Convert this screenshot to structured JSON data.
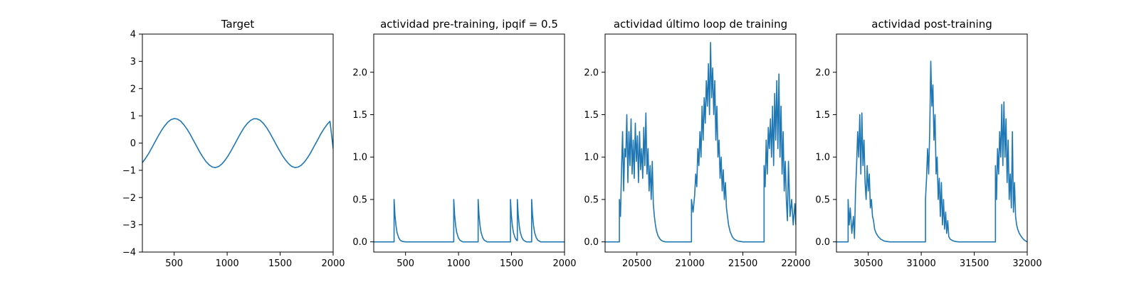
{
  "colors": {
    "line": "#1f77b4",
    "axis": "#000000",
    "background": "#ffffff"
  },
  "chart_data": [
    {
      "type": "line",
      "title": "Target",
      "xlabel": "",
      "ylabel": "",
      "xlim": [
        200,
        2000
      ],
      "ylim": [
        -4,
        4
      ],
      "xticks": [
        500,
        1000,
        1500,
        2000
      ],
      "yticks": [
        -4,
        -3,
        -2,
        -1,
        0,
        1,
        2,
        3,
        4
      ],
      "ytick_decimals": 0,
      "grid": false,
      "series": [
        {
          "x": [
            200,
            230,
            260,
            290,
            320,
            350,
            380,
            410,
            440,
            470,
            500,
            530,
            560,
            590,
            620,
            650,
            680,
            710,
            740,
            770,
            800,
            830,
            860,
            890,
            920,
            950,
            980,
            1010,
            1040,
            1070,
            1100,
            1130,
            1160,
            1190,
            1220,
            1250,
            1280,
            1310,
            1340,
            1370,
            1400,
            1430,
            1460,
            1490,
            1520,
            1550,
            1580,
            1610,
            1640,
            1670,
            1700,
            1730,
            1760,
            1790,
            1820,
            1850,
            1880,
            1910,
            1940,
            1970,
            2000
          ],
          "y": [
            -0.72,
            -0.56,
            -0.38,
            -0.17,
            0.05,
            0.26,
            0.46,
            0.63,
            0.77,
            0.86,
            0.9,
            0.88,
            0.81,
            0.68,
            0.52,
            0.33,
            0.11,
            -0.1,
            -0.32,
            -0.51,
            -0.68,
            -0.8,
            -0.88,
            -0.9,
            -0.86,
            -0.77,
            -0.63,
            -0.46,
            -0.26,
            -0.05,
            0.17,
            0.38,
            0.57,
            0.72,
            0.83,
            0.89,
            0.89,
            0.84,
            0.73,
            0.58,
            0.39,
            0.18,
            -0.04,
            -0.25,
            -0.45,
            -0.62,
            -0.76,
            -0.86,
            -0.9,
            -0.88,
            -0.81,
            -0.69,
            -0.53,
            -0.34,
            -0.12,
            0.09,
            0.31,
            0.5,
            0.67,
            0.8,
            -0.2
          ]
        }
      ]
    },
    {
      "type": "line",
      "title": "actividad pre-training, ipqif = 0.5",
      "xlabel": "",
      "ylabel": "",
      "xlim": [
        200,
        2000
      ],
      "ylim": [
        -0.12,
        2.45
      ],
      "xticks": [
        500,
        1000,
        1500,
        2000
      ],
      "yticks": [
        0.0,
        0.5,
        1.0,
        1.5,
        2.0
      ],
      "ytick_decimals": 1,
      "grid": false,
      "series": [
        {
          "x": [
            200,
            392,
            392,
            400,
            410,
            420,
            435,
            450,
            470,
            500,
            955,
            955,
            963,
            973,
            983,
            998,
            1013,
            1040,
            1185,
            1185,
            1193,
            1203,
            1213,
            1228,
            1243,
            1270,
            1490,
            1490,
            1498,
            1508,
            1518,
            1533,
            1548,
            1555,
            1555,
            1563,
            1573,
            1583,
            1598,
            1613,
            1640,
            1690,
            1690,
            1698,
            1708,
            1718,
            1733,
            1748,
            1775,
            2000
          ],
          "y": [
            0,
            0,
            0.5,
            0.32,
            0.19,
            0.11,
            0.05,
            0.02,
            0.005,
            0,
            0,
            0.5,
            0.32,
            0.19,
            0.11,
            0.05,
            0.02,
            0,
            0,
            0.5,
            0.32,
            0.19,
            0.11,
            0.05,
            0.02,
            0,
            0,
            0.5,
            0.32,
            0.19,
            0.11,
            0.05,
            0.02,
            0.015,
            0.5,
            0.32,
            0.19,
            0.11,
            0.05,
            0.02,
            0,
            0,
            0.5,
            0.32,
            0.19,
            0.11,
            0.05,
            0.02,
            0,
            0
          ]
        }
      ]
    },
    {
      "type": "line",
      "title": "actividad último loop de training",
      "xlabel": "",
      "ylabel": "",
      "xlim": [
        20200,
        22000
      ],
      "ylim": [
        -0.12,
        2.45
      ],
      "xticks": [
        20500,
        21000,
        21500,
        22000
      ],
      "yticks": [
        0.0,
        0.5,
        1.0,
        1.5,
        2.0
      ],
      "ytick_decimals": 1,
      "grid": false,
      "series": [
        {
          "x": [
            20200,
            20335,
            20335,
            20345,
            20355,
            20365,
            20375,
            20385,
            20395,
            20405,
            20415,
            20425,
            20435,
            20445,
            20455,
            20465,
            20475,
            20485,
            20495,
            20505,
            20515,
            20525,
            20535,
            20545,
            20555,
            20565,
            20575,
            20585,
            20595,
            20605,
            20615,
            20625,
            20635,
            20645,
            20655,
            20665,
            20675,
            20685,
            20700,
            20720,
            20740,
            20770,
            20800,
            21015,
            21015,
            21030,
            21045,
            21055,
            21065,
            21075,
            21085,
            21095,
            21105,
            21115,
            21125,
            21135,
            21145,
            21155,
            21165,
            21175,
            21185,
            21195,
            21205,
            21215,
            21225,
            21235,
            21245,
            21255,
            21265,
            21275,
            21285,
            21295,
            21305,
            21315,
            21325,
            21335,
            21345,
            21355,
            21365,
            21380,
            21400,
            21420,
            21450,
            21500,
            21700,
            21700,
            21710,
            21720,
            21730,
            21740,
            21750,
            21760,
            21770,
            21780,
            21790,
            21800,
            21810,
            21820,
            21830,
            21840,
            21850,
            21860,
            21870,
            21880,
            21890,
            21900,
            21910,
            21920,
            21930,
            21945,
            21960,
            21975,
            21990,
            22000
          ],
          "y": [
            0,
            0,
            0.5,
            0.3,
            0.85,
            1.3,
            0.6,
            1.1,
            1.0,
            1.5,
            0.7,
            1.3,
            0.9,
            1.45,
            0.8,
            1.2,
            0.75,
            1.4,
            0.95,
            1.25,
            0.7,
            1.3,
            0.85,
            1.1,
            0.75,
            1.35,
            0.9,
            1.52,
            0.8,
            1.1,
            0.6,
            0.9,
            0.5,
            0.95,
            0.45,
            0.3,
            0.2,
            0.13,
            0.07,
            0.03,
            0.01,
            0,
            0,
            0,
            0.5,
            0.35,
            0.55,
            0.8,
            0.65,
            1.1,
            0.9,
            1.3,
            1.0,
            1.6,
            1.2,
            1.7,
            1.4,
            1.9,
            1.6,
            2.1,
            1.5,
            2.35,
            1.7,
            2.05,
            1.5,
            1.9,
            1.2,
            1.6,
            1.0,
            1.2,
            0.75,
            1.0,
            0.6,
            0.85,
            0.5,
            0.7,
            0.4,
            0.3,
            0.2,
            0.12,
            0.06,
            0.03,
            0.01,
            0,
            0,
            0.9,
            0.65,
            1.2,
            0.8,
            1.35,
            1.1,
            1.45,
            1.0,
            1.6,
            0.9,
            1.75,
            1.2,
            1.9,
            1.1,
            1.98,
            1.0,
            1.6,
            0.8,
            1.3,
            0.6,
            0.95,
            0.5,
            0.25,
            0.95,
            0.3,
            0.5,
            0.2,
            0.45,
            0.2
          ]
        }
      ]
    },
    {
      "type": "line",
      "title": "actividad post-training",
      "xlabel": "",
      "ylabel": "",
      "xlim": [
        30200,
        32000
      ],
      "ylim": [
        -0.12,
        2.45
      ],
      "xticks": [
        30500,
        31000,
        31500,
        32000
      ],
      "yticks": [
        0.0,
        0.5,
        1.0,
        1.5,
        2.0
      ],
      "ytick_decimals": 1,
      "grid": false,
      "series": [
        {
          "x": [
            30200,
            30310,
            30310,
            30320,
            30330,
            30345,
            30360,
            30370,
            30380,
            30390,
            30400,
            30410,
            30420,
            30430,
            30440,
            30450,
            30460,
            30470,
            30480,
            30490,
            30500,
            30510,
            30520,
            30530,
            30540,
            30550,
            30560,
            30575,
            30595,
            30620,
            30650,
            30700,
            31040,
            31040,
            31050,
            31060,
            31070,
            31080,
            31090,
            31100,
            31110,
            31120,
            31130,
            31140,
            31150,
            31160,
            31170,
            31180,
            31190,
            31200,
            31210,
            31220,
            31230,
            31240,
            31250,
            31260,
            31275,
            31295,
            31320,
            31350,
            31400,
            31700,
            31700,
            31710,
            31720,
            31730,
            31740,
            31750,
            31760,
            31770,
            31780,
            31790,
            31800,
            31810,
            31820,
            31830,
            31840,
            31850,
            31860,
            31870,
            31880,
            31890,
            31900,
            31910,
            31925,
            31945,
            31965,
            31985,
            32000
          ],
          "y": [
            0,
            0,
            0.5,
            0.2,
            0.4,
            0.1,
            0.3,
            0.04,
            0.6,
            0.9,
            1.3,
            1.0,
            1.5,
            0.8,
            1.52,
            0.9,
            1.2,
            0.7,
            0.5,
            0.9,
            0.6,
            0.8,
            0.4,
            0.5,
            0.3,
            0.25,
            0.15,
            0.1,
            0.06,
            0.03,
            0.01,
            0,
            0,
            0.5,
            0.75,
            1.1,
            0.8,
            1.3,
            2.13,
            1.6,
            1.85,
            1.2,
            1.5,
            0.8,
            1.0,
            0.5,
            0.75,
            0.3,
            0.7,
            0.2,
            0.5,
            0.15,
            0.35,
            0.1,
            0.25,
            0.06,
            0.03,
            0.015,
            0.005,
            0,
            0,
            0,
            0.9,
            0.5,
            1.1,
            0.8,
            1.3,
            1.0,
            1.62,
            0.9,
            1.65,
            1.0,
            1.45,
            0.7,
            1.2,
            0.5,
            0.8,
            0.4,
            1.3,
            0.35,
            0.7,
            0.3,
            0.2,
            0.15,
            0.1,
            0.06,
            0.03,
            0.01,
            0
          ]
        }
      ]
    }
  ]
}
